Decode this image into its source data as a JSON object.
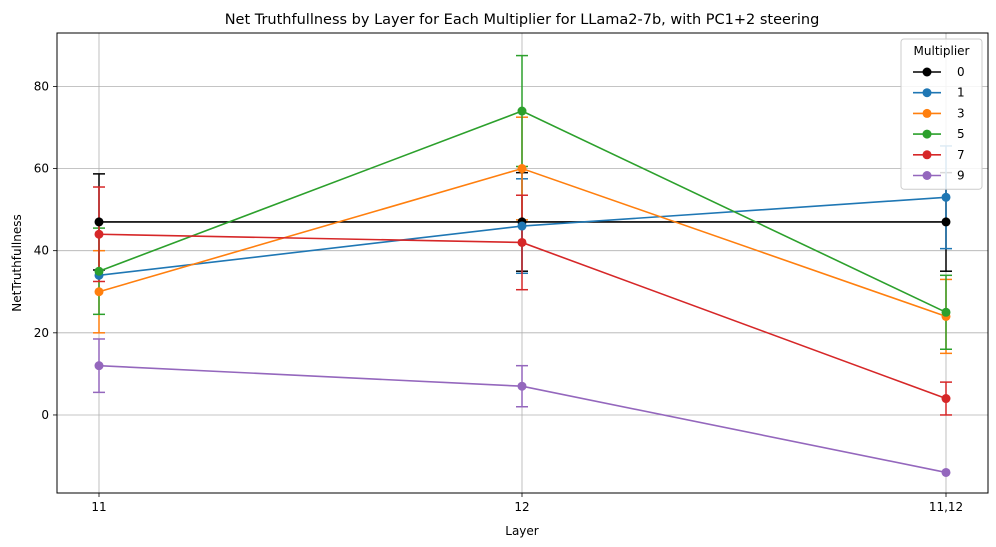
{
  "chart_data": {
    "type": "line",
    "title": "Net Truthfullness by Layer for Each Multiplier for LLama2-7b, with PC1+2 steering",
    "xlabel": "Layer",
    "ylabel": "NetTruthfullness",
    "categories": [
      "11",
      "12",
      "11,12"
    ],
    "ylim": [
      -19,
      93
    ],
    "yticks": [
      0,
      20,
      40,
      60,
      80
    ],
    "grid": true,
    "legend": {
      "title": "Multiplier",
      "placement": "top-right"
    },
    "series": [
      {
        "name": "0",
        "color": "#000000",
        "values": [
          47,
          47,
          47
        ],
        "err": [
          11.7,
          12,
          12
        ]
      },
      {
        "name": "1",
        "color": "#1f77b4",
        "values": [
          34,
          46,
          53
        ],
        "err": [
          0,
          11.5,
          12.5
        ]
      },
      {
        "name": "3",
        "color": "#ff7f0e",
        "values": [
          30,
          60,
          24
        ],
        "err": [
          10,
          12.5,
          9
        ]
      },
      {
        "name": "5",
        "color": "#2ca02c",
        "values": [
          35,
          74,
          25
        ],
        "err": [
          10.5,
          13.5,
          9
        ]
      },
      {
        "name": "7",
        "color": "#d62728",
        "values": [
          44,
          42,
          4
        ],
        "err": [
          11.5,
          11.5,
          4
        ]
      },
      {
        "name": "9",
        "color": "#9467bd",
        "values": [
          12,
          7,
          -14
        ],
        "err": [
          6.5,
          5,
          0
        ]
      }
    ]
  }
}
